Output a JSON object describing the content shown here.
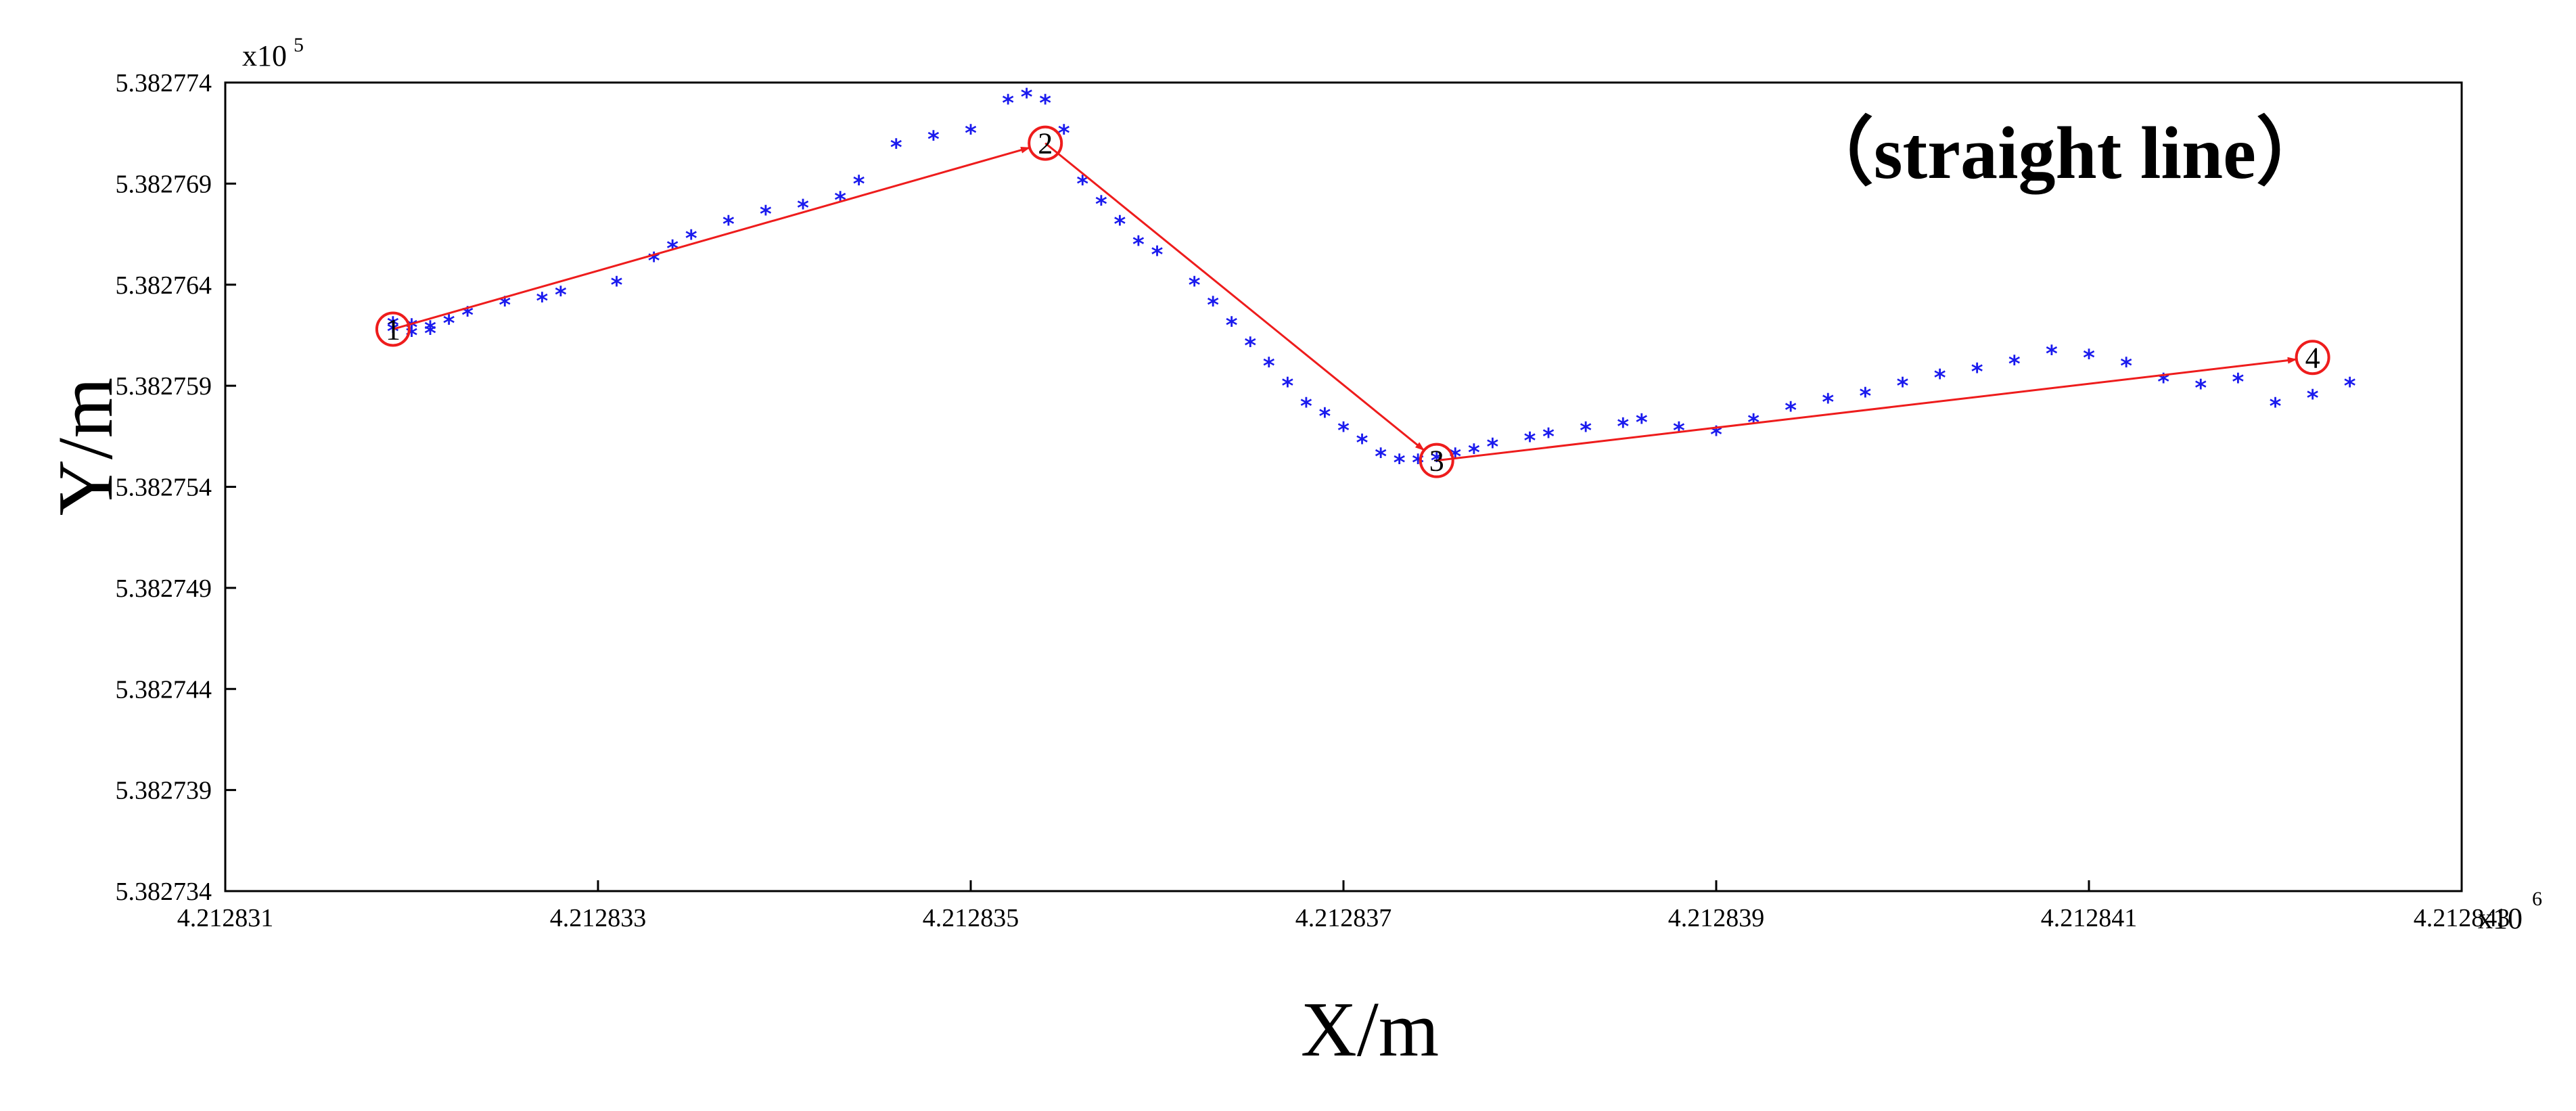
{
  "chart_data": {
    "type": "scatter",
    "title": "",
    "annotation": "（straight line）",
    "xlabel": "X/m",
    "ylabel": "Y/m",
    "x_multiplier": "x10",
    "x_multiplier_exp": "6",
    "y_multiplier": "x10",
    "y_multiplier_exp": "5",
    "xlim": [
      4.212831,
      4.212843
    ],
    "ylim": [
      5.382734,
      5.382774
    ],
    "x_ticks": [
      4.212831,
      4.212833,
      4.212835,
      4.212837,
      4.212839,
      4.212841,
      4.212843
    ],
    "x_tick_labels": [
      "4.212831",
      "4.212833",
      "4.212835",
      "4.212837",
      "4.212839",
      "4.212841",
      "4.212843"
    ],
    "y_ticks": [
      5.382734,
      5.382739,
      5.382744,
      5.382749,
      5.382754,
      5.382759,
      5.382764,
      5.382769,
      5.382774
    ],
    "y_tick_labels": [
      "5.382734",
      "5.382739",
      "5.382744",
      "5.382749",
      "5.382754",
      "5.382759",
      "5.382764",
      "5.382769",
      "5.382774"
    ],
    "grid": false,
    "colors": {
      "points": "#1a1aee",
      "route": "#ee1c1c",
      "axis": "#000000"
    },
    "waypoints": [
      {
        "label": "1",
        "x": 4.2128319,
        "y": 5.3827618
      },
      {
        "label": "2",
        "x": 4.2128354,
        "y": 5.382771
      },
      {
        "label": "3",
        "x": 4.2128375,
        "y": 5.3827553
      },
      {
        "label": "4",
        "x": 4.2128422,
        "y": 5.3827604
      }
    ],
    "series": [
      {
        "name": "",
        "marker": "*",
        "x": [
          4.2128319,
          4.212832,
          4.2128321,
          4.2128319,
          4.2128322,
          4.2128321,
          4.212832,
          4.2128323,
          4.2128325,
          4.2128327,
          4.2128328,
          4.2128331,
          4.2128333,
          4.2128334,
          4.2128335,
          4.2128337,
          4.2128339,
          4.2128341,
          4.2128343,
          4.2128344,
          4.2128346,
          4.2128348,
          4.212835,
          4.2128352,
          4.2128353,
          4.2128354,
          4.2128355,
          4.2128356,
          4.2128357,
          4.2128358,
          4.2128359,
          4.212836,
          4.2128362,
          4.2128363,
          4.2128364,
          4.2128365,
          4.2128366,
          4.2128367,
          4.2128368,
          4.2128369,
          4.212837,
          4.2128371,
          4.2128372,
          4.2128373,
          4.2128374,
          4.2128375,
          4.2128376,
          4.2128377,
          4.2128378,
          4.212838,
          4.2128381,
          4.2128383,
          4.2128385,
          4.2128386,
          4.2128388,
          4.212839,
          4.2128392,
          4.2128394,
          4.2128396,
          4.2128398,
          4.21284,
          4.2128402,
          4.2128404,
          4.2128406,
          4.2128408,
          4.212841,
          4.2128412,
          4.2128414,
          4.2128416,
          4.2128418,
          4.212842,
          4.2128422,
          4.2128424
        ],
        "y": [
          5.3827617,
          5.3827619,
          5.3827618,
          5.382762,
          5.3827621,
          5.3827616,
          5.3827615,
          5.3827625,
          5.382763,
          5.3827632,
          5.3827635,
          5.382764,
          5.3827652,
          5.3827658,
          5.3827663,
          5.382767,
          5.3827675,
          5.3827678,
          5.3827682,
          5.382769,
          5.3827708,
          5.3827712,
          5.3827715,
          5.382773,
          5.3827733,
          5.382773,
          5.3827715,
          5.382769,
          5.382768,
          5.382767,
          5.382766,
          5.3827655,
          5.382764,
          5.382763,
          5.382762,
          5.382761,
          5.38276,
          5.382759,
          5.382758,
          5.3827575,
          5.3827568,
          5.3827562,
          5.3827555,
          5.3827552,
          5.3827552,
          5.3827553,
          5.3827555,
          5.3827557,
          5.382756,
          5.3827563,
          5.3827565,
          5.3827568,
          5.382757,
          5.3827572,
          5.3827568,
          5.3827566,
          5.3827572,
          5.3827578,
          5.3827582,
          5.3827585,
          5.382759,
          5.3827594,
          5.3827597,
          5.3827601,
          5.3827606,
          5.3827604,
          5.38276,
          5.3827592,
          5.3827589,
          5.3827592,
          5.382758,
          5.3827584,
          5.382759
        ]
      }
    ]
  }
}
